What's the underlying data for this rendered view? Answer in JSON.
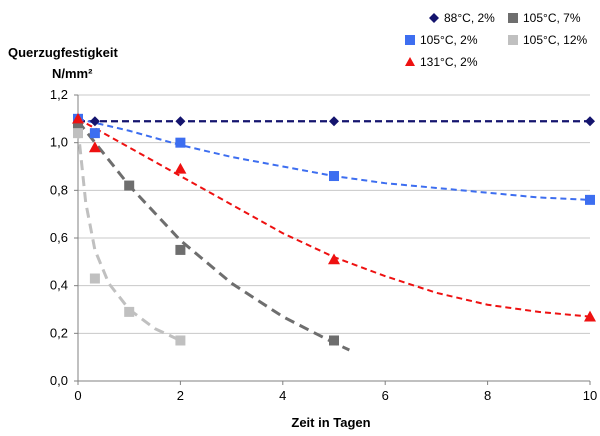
{
  "chart_data": {
    "type": "scatter",
    "xlabel": "Zeit in Tagen",
    "ylabel_line1": "Querzugfestigkeit",
    "ylabel_line2": "N/mm²",
    "xlim": [
      0,
      10
    ],
    "ylim": [
      0.0,
      1.2
    ],
    "x_ticks": [
      0,
      2,
      4,
      6,
      8,
      10
    ],
    "y_ticks": [
      0.0,
      0.2,
      0.4,
      0.6,
      0.8,
      1.0,
      1.2
    ],
    "x_tick_labels": [
      "0",
      "2",
      "4",
      "6",
      "8",
      "10"
    ],
    "y_tick_labels": [
      "0,0",
      "0,2",
      "0,4",
      "0,6",
      "0,8",
      "1,0",
      "1,2"
    ],
    "grid": "horizontal",
    "legend_position": "top-right",
    "series": [
      {
        "name": "88°C, 2%",
        "marker": "diamond",
        "color": "#14146e",
        "points": [
          [
            0,
            1.1
          ],
          [
            0.33,
            1.09
          ],
          [
            2,
            1.09
          ],
          [
            5,
            1.09
          ],
          [
            10,
            1.09
          ]
        ],
        "trend": [
          [
            0,
            1.09
          ],
          [
            10,
            1.09
          ]
        ]
      },
      {
        "name": "105°C, 2%",
        "marker": "square",
        "color": "#3d6ef0",
        "points": [
          [
            0,
            1.1
          ],
          [
            0.33,
            1.04
          ],
          [
            2,
            1.0
          ],
          [
            5,
            0.86
          ],
          [
            10,
            0.76
          ]
        ],
        "trend": [
          [
            0,
            1.1
          ],
          [
            1,
            1.05
          ],
          [
            2,
            0.99
          ],
          [
            3,
            0.94
          ],
          [
            4,
            0.9
          ],
          [
            5,
            0.86
          ],
          [
            6,
            0.83
          ],
          [
            7,
            0.81
          ],
          [
            8,
            0.79
          ],
          [
            9,
            0.77
          ],
          [
            10,
            0.76
          ]
        ]
      },
      {
        "name": "131°C, 2%",
        "marker": "triangle",
        "color": "#ee1111",
        "points": [
          [
            0,
            1.1
          ],
          [
            0.33,
            0.98
          ],
          [
            2,
            0.89
          ],
          [
            5,
            0.51
          ],
          [
            10,
            0.27
          ]
        ],
        "trend": [
          [
            0,
            1.1
          ],
          [
            1,
            0.98
          ],
          [
            2,
            0.86
          ],
          [
            3,
            0.74
          ],
          [
            4,
            0.62
          ],
          [
            5,
            0.52
          ],
          [
            6,
            0.44
          ],
          [
            7,
            0.37
          ],
          [
            8,
            0.32
          ],
          [
            9,
            0.29
          ],
          [
            10,
            0.27
          ]
        ]
      },
      {
        "name": "105°C, 7%",
        "marker": "square",
        "color": "#6e6e6e",
        "points": [
          [
            0,
            1.06
          ],
          [
            1,
            0.82
          ],
          [
            2,
            0.55
          ],
          [
            5,
            0.17
          ]
        ],
        "trend": [
          [
            0,
            1.09
          ],
          [
            1,
            0.82
          ],
          [
            2,
            0.59
          ],
          [
            3,
            0.41
          ],
          [
            4,
            0.27
          ],
          [
            5,
            0.16
          ],
          [
            5.3,
            0.13
          ]
        ]
      },
      {
        "name": "105°C, 12%",
        "marker": "square",
        "color": "#c0c0c0",
        "points": [
          [
            0,
            1.04
          ],
          [
            0.33,
            0.43
          ],
          [
            1,
            0.29
          ],
          [
            2,
            0.17
          ]
        ],
        "trend": [
          [
            0,
            1.06
          ],
          [
            0.15,
            0.75
          ],
          [
            0.33,
            0.55
          ],
          [
            0.6,
            0.41
          ],
          [
            1,
            0.3
          ],
          [
            1.5,
            0.22
          ],
          [
            2,
            0.17
          ]
        ]
      }
    ]
  }
}
